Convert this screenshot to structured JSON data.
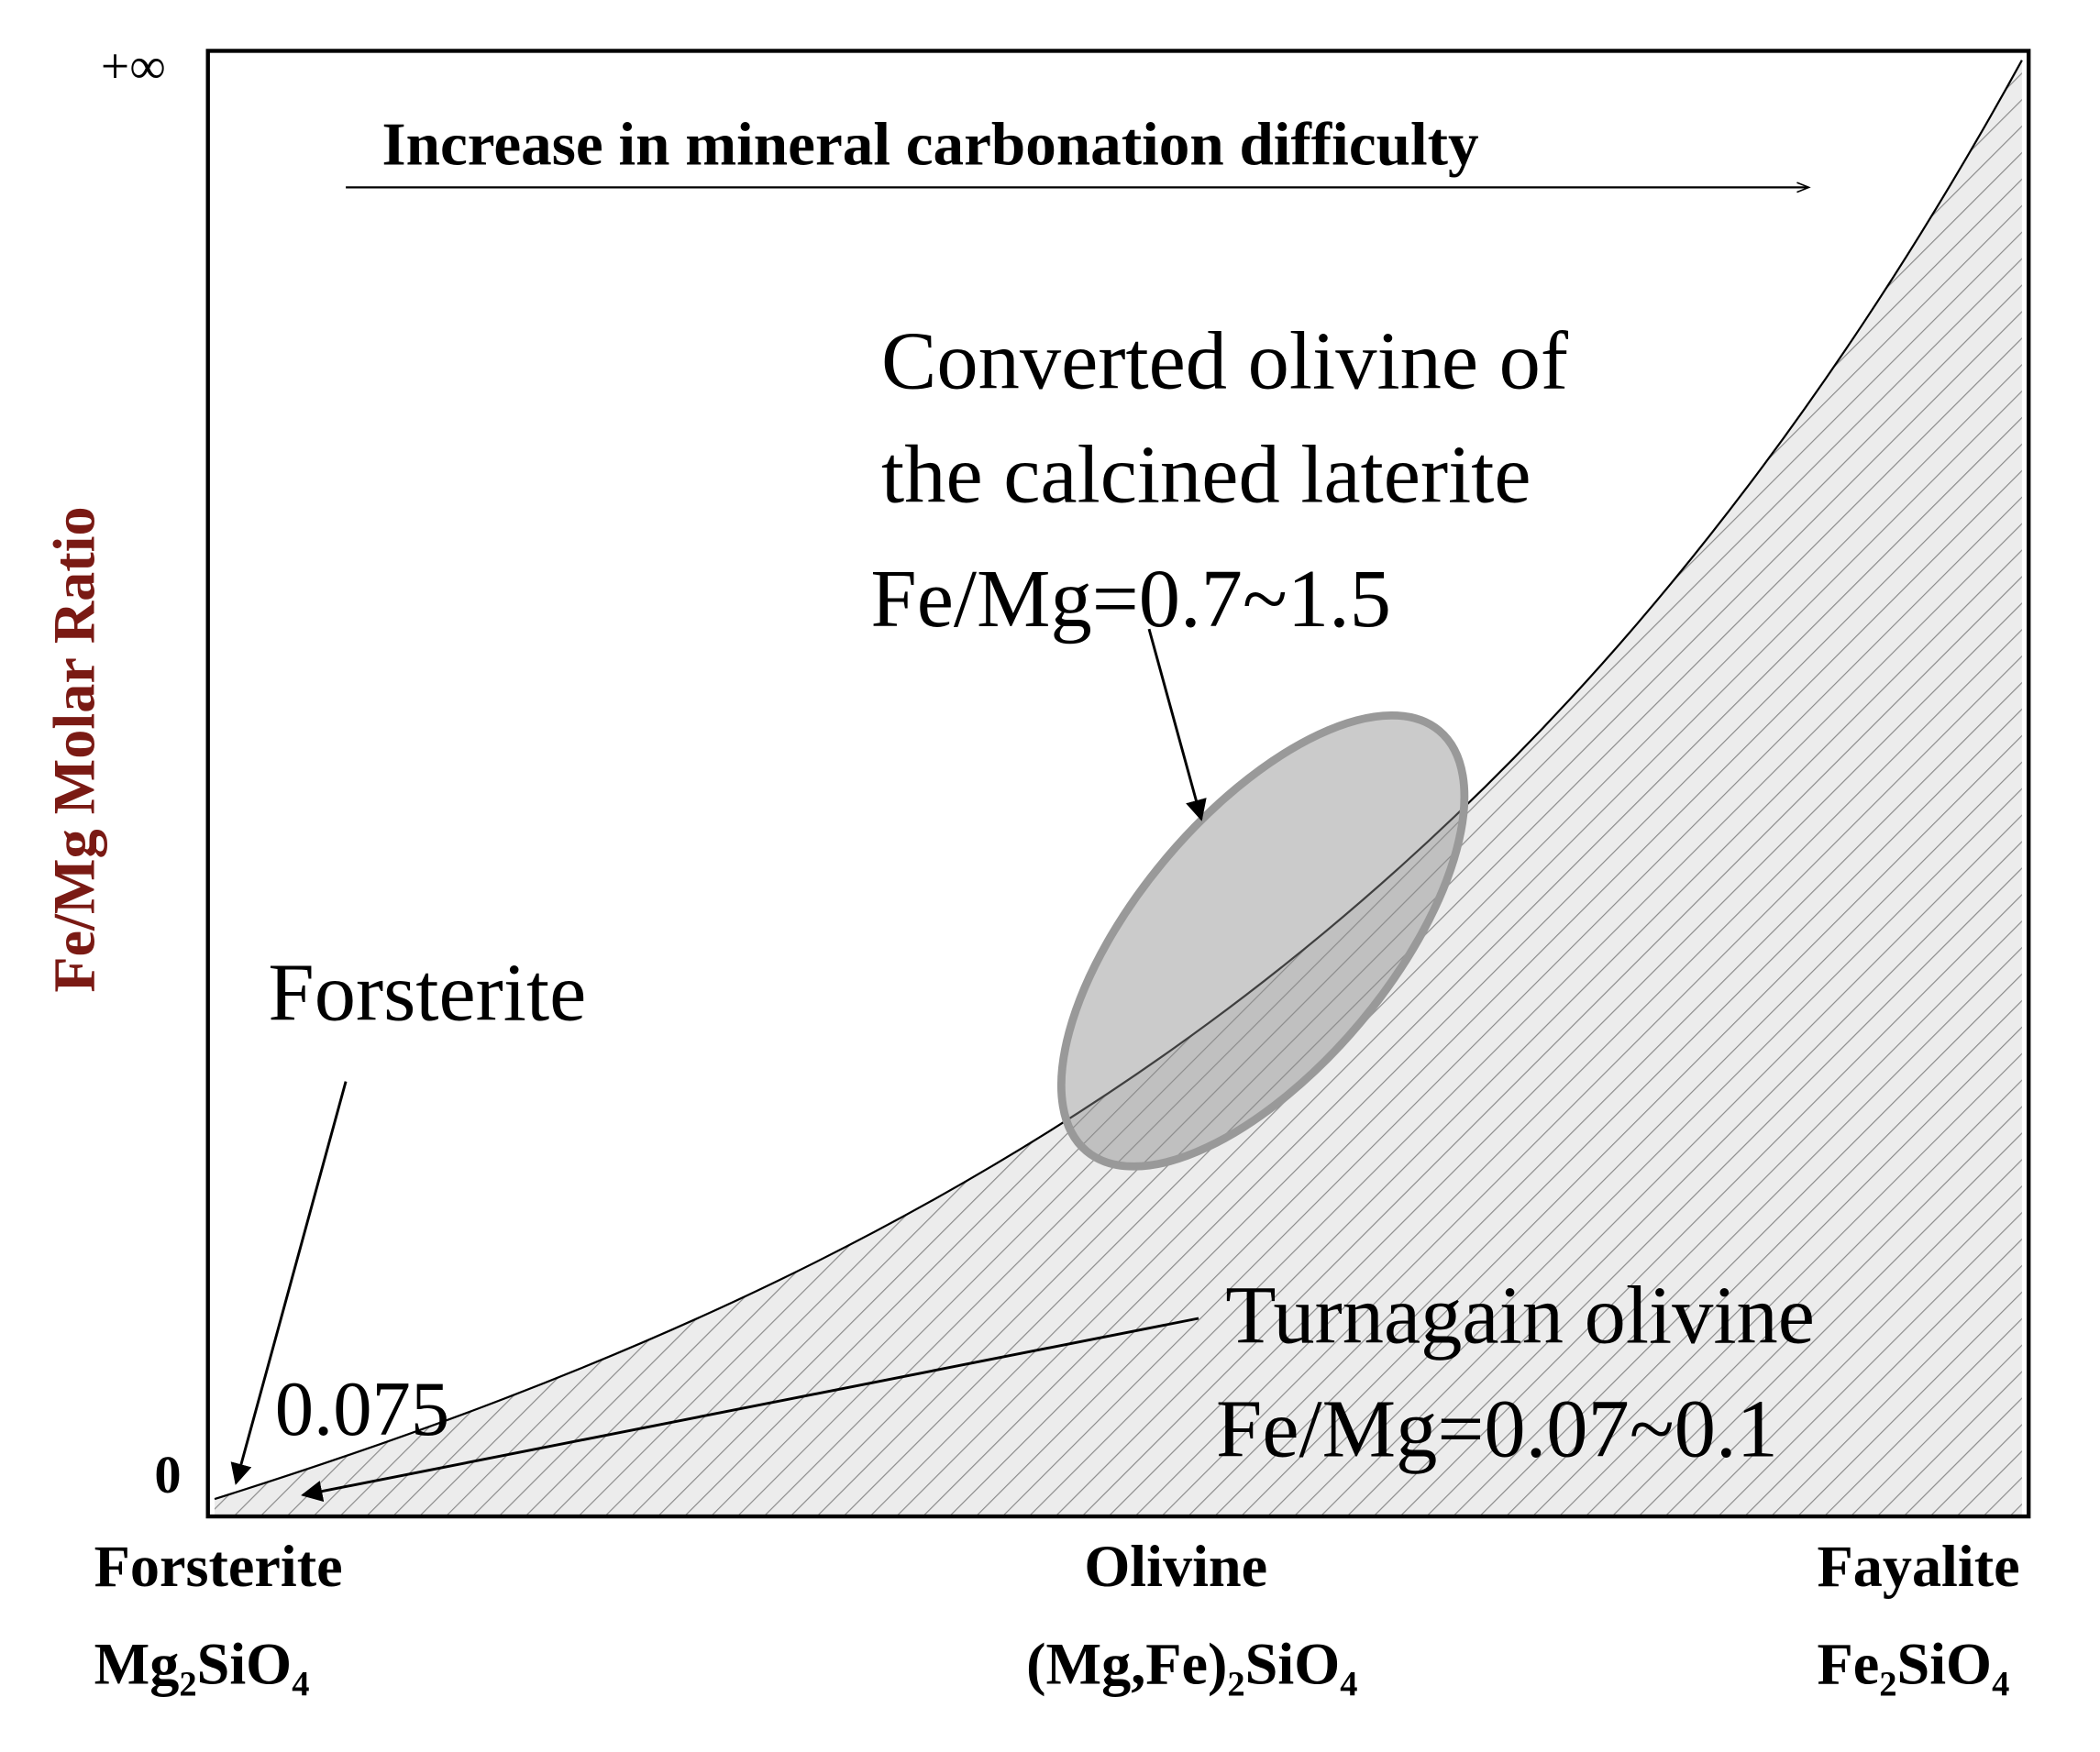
{
  "axis": {
    "y_label": "Fe/Mg Molar Ratio",
    "y_top": "+∞",
    "y_bottom": "0"
  },
  "header": {
    "trend": "Increase in mineral carbonation difficulty"
  },
  "annotations": {
    "converted": [
      "Converted olivine of",
      "the calcined laterite",
      "Fe/Mg=0.7~1.5"
    ],
    "forsterite": "Forsterite",
    "forsterite_value": "0.075",
    "turnagain": [
      "Turnagain olivine",
      "Fe/Mg=0.07~0.1"
    ]
  },
  "x_labels": [
    {
      "name": "Forsterite",
      "formula": "Mg₂SiO₄"
    },
    {
      "name": "Olivine",
      "formula": "(Mg,Fe)₂SiO₄"
    },
    {
      "name": "Fayalite",
      "formula": "Fe₂SiO₄"
    }
  ]
}
